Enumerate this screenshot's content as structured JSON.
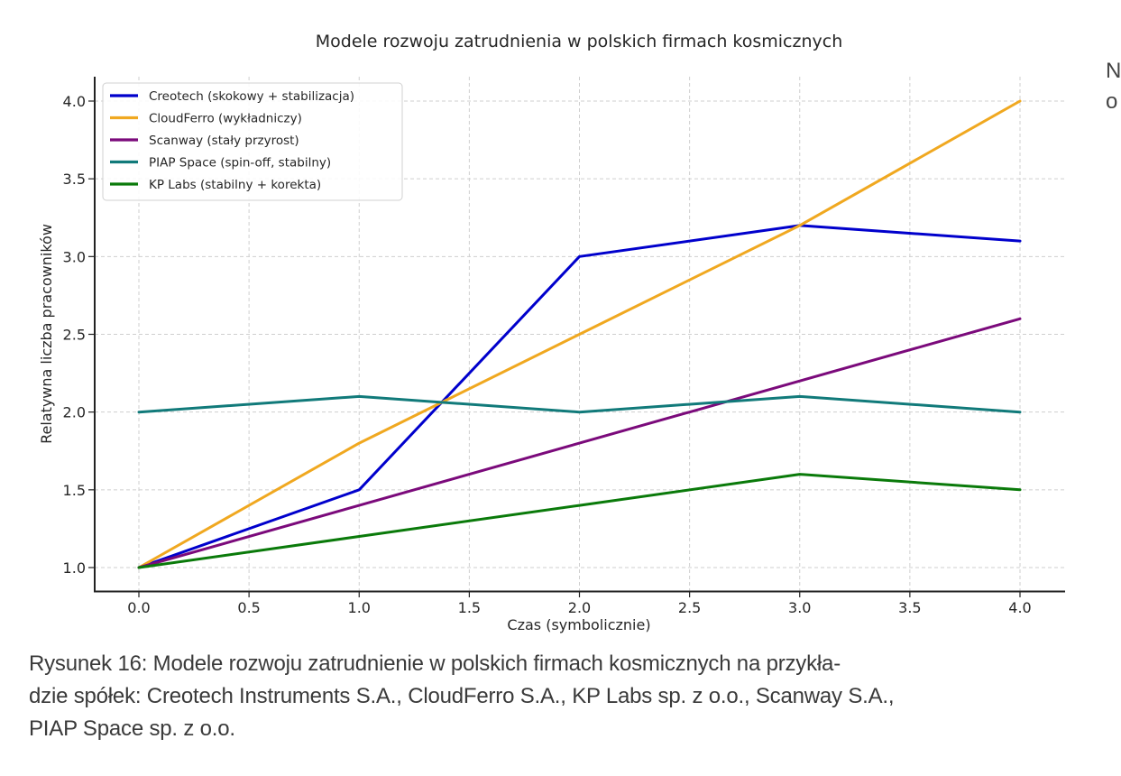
{
  "chart_data": {
    "type": "line",
    "title": "Modele rozwoju zatrudnienia w polskich firmach kosmicznych",
    "xlabel": "Czas (symbolicznie)",
    "ylabel": "Relatywna liczba pracowników",
    "x": [
      0.0,
      0.5,
      1.0,
      1.5,
      2.0,
      2.5,
      3.0,
      3.5,
      4.0
    ],
    "xticks": [
      "0.0",
      "0.5",
      "1.0",
      "1.5",
      "2.0",
      "2.5",
      "3.0",
      "3.5",
      "4.0"
    ],
    "yticks": [
      "1.0",
      "1.5",
      "2.0",
      "2.5",
      "3.0",
      "3.5",
      "4.0"
    ],
    "xlim": [
      -0.2,
      4.2
    ],
    "ylim": [
      0.85,
      4.15
    ],
    "grid": true,
    "legend_position": "upper left",
    "series": [
      {
        "name": "Creotech (skokowy + stabilizacja)",
        "color": "#0000cc",
        "x": [
          0.0,
          1.0,
          2.0,
          3.0,
          4.0
        ],
        "values": [
          1.0,
          1.5,
          3.0,
          3.2,
          3.1
        ]
      },
      {
        "name": "CloudFerro (wykładniczy)",
        "color": "#f0a820",
        "x": [
          0.0,
          1.0,
          2.0,
          3.0,
          4.0
        ],
        "values": [
          1.0,
          1.8,
          2.5,
          3.2,
          4.0
        ]
      },
      {
        "name": "Scanway (stały przyrost)",
        "color": "#7b0a7b",
        "x": [
          0.0,
          1.0,
          2.0,
          3.0,
          4.0
        ],
        "values": [
          1.0,
          1.4,
          1.8,
          2.2,
          2.6
        ]
      },
      {
        "name": "PIAP Space (spin-off, stabilny)",
        "color": "#117a7a",
        "x": [
          0.0,
          1.0,
          2.0,
          3.0,
          4.0
        ],
        "values": [
          2.0,
          2.1,
          2.0,
          2.1,
          2.0
        ]
      },
      {
        "name": "KP Labs (stabilny + korekta)",
        "color": "#0a7a0a",
        "x": [
          0.0,
          1.0,
          2.0,
          3.0,
          4.0
        ],
        "values": [
          1.0,
          1.2,
          1.4,
          1.6,
          1.5
        ]
      }
    ]
  },
  "caption": "Rysunek 16: Modele rozwoju zatrudnienie w polskich firmach kosmicznych na przykładzie spółek: Creotech Instruments S.A., CloudFerro S.A., KP Labs sp. z o.o., Scanway S.A., PIAP Space sp. z o.o.",
  "caption_lines": [
    "Rysunek 16: Modele rozwoju zatrudnienie w polskich firmach kosmicznych na przykła-",
    "dzie spółek: Creotech Instruments S.A., CloudFerro S.A., KP Labs sp. z o.o., Scanway S.A.,",
    "PIAP Space sp. z o.o."
  ],
  "side_text": [
    "N",
    "o"
  ]
}
